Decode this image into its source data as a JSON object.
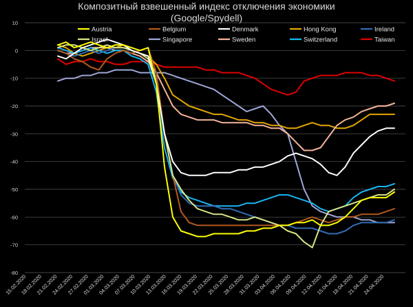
{
  "chart_data": {
    "type": "line",
    "title": [
      "Композитный взвешенный индекс отключения экономики",
      "(Google/Spydell)"
    ],
    "ylim": [
      -80,
      10
    ],
    "yticks": [
      10,
      0,
      -10,
      -20,
      -30,
      -40,
      -50,
      -60,
      -70,
      -80
    ],
    "grid": true,
    "legend_position": "top",
    "x_tick_labels": [
      "15.02.2020",
      "18.02.2020",
      "21.02.2020",
      "24.02.2020",
      "27.02.2020",
      "01.03.2020",
      "04.03.2020",
      "07.03.2020",
      "10.03.2020",
      "13.03.2020",
      "16.03.2020",
      "19.03.2020",
      "22.03.2020",
      "25.03.2020",
      "28.03.2020",
      "31.03.2020",
      "03.04.2020",
      "06.04.2020",
      "09.04.2020",
      "12.04.2020",
      "15.04.2020",
      "18.04.2020",
      "21.04.2020",
      "24.04.2020"
    ],
    "series": [
      {
        "name": "Austria",
        "color": "#ffff00",
        "values": [
          2,
          3,
          1,
          2,
          3,
          2,
          1,
          2,
          2,
          1,
          0,
          1,
          -12,
          -42,
          -60,
          -65,
          -66,
          -67,
          -67,
          -66,
          -66,
          -66,
          -66,
          -65,
          -65,
          -64,
          -64,
          -63,
          -63,
          -62,
          -62,
          -61,
          -63,
          -63,
          -62,
          -60,
          -57,
          -54,
          -53,
          -53,
          -53,
          -51
        ]
      },
      {
        "name": "Belgium",
        "color": "#b55a1c",
        "values": [
          0,
          -1,
          -3,
          -4,
          -6,
          -7,
          -3,
          -1,
          0,
          -1,
          0,
          1,
          -8,
          -30,
          -45,
          -58,
          -62,
          -63,
          -63,
          -63,
          -63,
          -63,
          -63,
          -63,
          -63,
          -63,
          -63,
          -63,
          -63,
          -62,
          -61,
          -60,
          -61,
          -62,
          -61,
          -60,
          -60,
          -59,
          -59,
          -59,
          -58,
          -57
        ]
      },
      {
        "name": "Denmark",
        "color": "#ffffff",
        "values": [
          -2,
          -3,
          -1,
          1,
          2,
          3,
          4,
          3,
          2,
          0,
          -1,
          -2,
          -12,
          -30,
          -40,
          -44,
          -45,
          -45,
          -45,
          -44,
          -44,
          -44,
          -43,
          -43,
          -42,
          -42,
          -41,
          -40,
          -38,
          -37,
          -38,
          -39,
          -41,
          -44,
          -45,
          -42,
          -37,
          -34,
          -31,
          -29,
          -28,
          -28
        ]
      },
      {
        "name": "Hong Kong",
        "color": "#e5a800",
        "values": [
          2,
          1,
          -1,
          -2,
          -1,
          0,
          1,
          1,
          2,
          0,
          -1,
          -2,
          -5,
          -10,
          -16,
          -18,
          -20,
          -21,
          -22,
          -23,
          -23,
          -24,
          -25,
          -25,
          -26,
          -26,
          -27,
          -27,
          -28,
          -28,
          -27,
          -26,
          -27,
          -27,
          -28,
          -28,
          -27,
          -25,
          -23,
          -23,
          -23,
          -23
        ]
      },
      {
        "name": "Ireland",
        "color": "#2f6db5",
        "values": [
          0,
          -1,
          -2,
          -1,
          0,
          -1,
          0,
          1,
          1,
          0,
          -1,
          -2,
          -10,
          -30,
          -45,
          -52,
          -55,
          -56,
          -56,
          -56,
          -57,
          -57,
          -58,
          -59,
          -60,
          -61,
          -62,
          -63,
          -63,
          -64,
          -64,
          -64,
          -65,
          -66,
          -66,
          -65,
          -63,
          -62,
          -62,
          -62,
          -62,
          -61
        ]
      },
      {
        "name": "Israel",
        "color": "#d7e685",
        "values": [
          1,
          2,
          2,
          1,
          0,
          1,
          2,
          1,
          1,
          0,
          -1,
          -3,
          -12,
          -30,
          -45,
          -50,
          -54,
          -57,
          -58,
          -59,
          -59,
          -60,
          -61,
          -61,
          -60,
          -61,
          -62,
          -63,
          -65,
          -66,
          -69,
          -71,
          -63,
          -58,
          -57,
          -56,
          -55,
          -54,
          -53,
          -52,
          -52,
          -50
        ]
      },
      {
        "name": "Singapore",
        "color": "#9fa8d8",
        "values": [
          -11,
          -10,
          -10,
          -9,
          -9,
          -8,
          -8,
          -7,
          -7,
          -7,
          -8,
          -8,
          -8,
          -8,
          -9,
          -10,
          -11,
          -12,
          -13,
          -14,
          -16,
          -18,
          -20,
          -22,
          -21,
          -20,
          -23,
          -27,
          -30,
          -40,
          -50,
          -56,
          -58,
          -59,
          -60,
          -60,
          -60,
          -61,
          -61,
          -62,
          -62,
          -62
        ]
      },
      {
        "name": "Sweden",
        "color": "#f5b49a",
        "values": [
          0,
          -1,
          -1,
          0,
          1,
          1,
          1,
          0,
          0,
          -1,
          -2,
          -4,
          -8,
          -14,
          -20,
          -23,
          -24,
          -25,
          -25,
          -25,
          -26,
          -26,
          -26,
          -26,
          -27,
          -27,
          -28,
          -28,
          -30,
          -33,
          -36,
          -36,
          -35,
          -31,
          -27,
          -25,
          -24,
          -22,
          -21,
          -20,
          -20,
          -19
        ]
      },
      {
        "name": "Switzerland",
        "color": "#19b6f2",
        "values": [
          1,
          0,
          -1,
          0,
          1,
          0,
          -1,
          0,
          0,
          -2,
          -3,
          -5,
          -15,
          -35,
          -46,
          -51,
          -53,
          -54,
          -55,
          -56,
          -56,
          -56,
          -56,
          -55,
          -55,
          -54,
          -53,
          -52,
          -52,
          -53,
          -54,
          -55,
          -57,
          -58,
          -57,
          -56,
          -53,
          -51,
          -50,
          -49,
          -49,
          -48
        ]
      },
      {
        "name": "Taiwan",
        "color": "#e10000",
        "values": [
          -3,
          -5,
          -4,
          -4,
          -3,
          -4,
          -4,
          -5,
          -5,
          -4,
          -4,
          -4,
          -5,
          -6,
          -6,
          -6,
          -6,
          -6,
          -7,
          -7,
          -8,
          -8,
          -8,
          -9,
          -10,
          -12,
          -14,
          -15,
          -16,
          -15,
          -11,
          -10,
          -9,
          -9,
          -9,
          -8,
          -8,
          -8,
          -9,
          -9,
          -10,
          -11
        ]
      }
    ]
  }
}
